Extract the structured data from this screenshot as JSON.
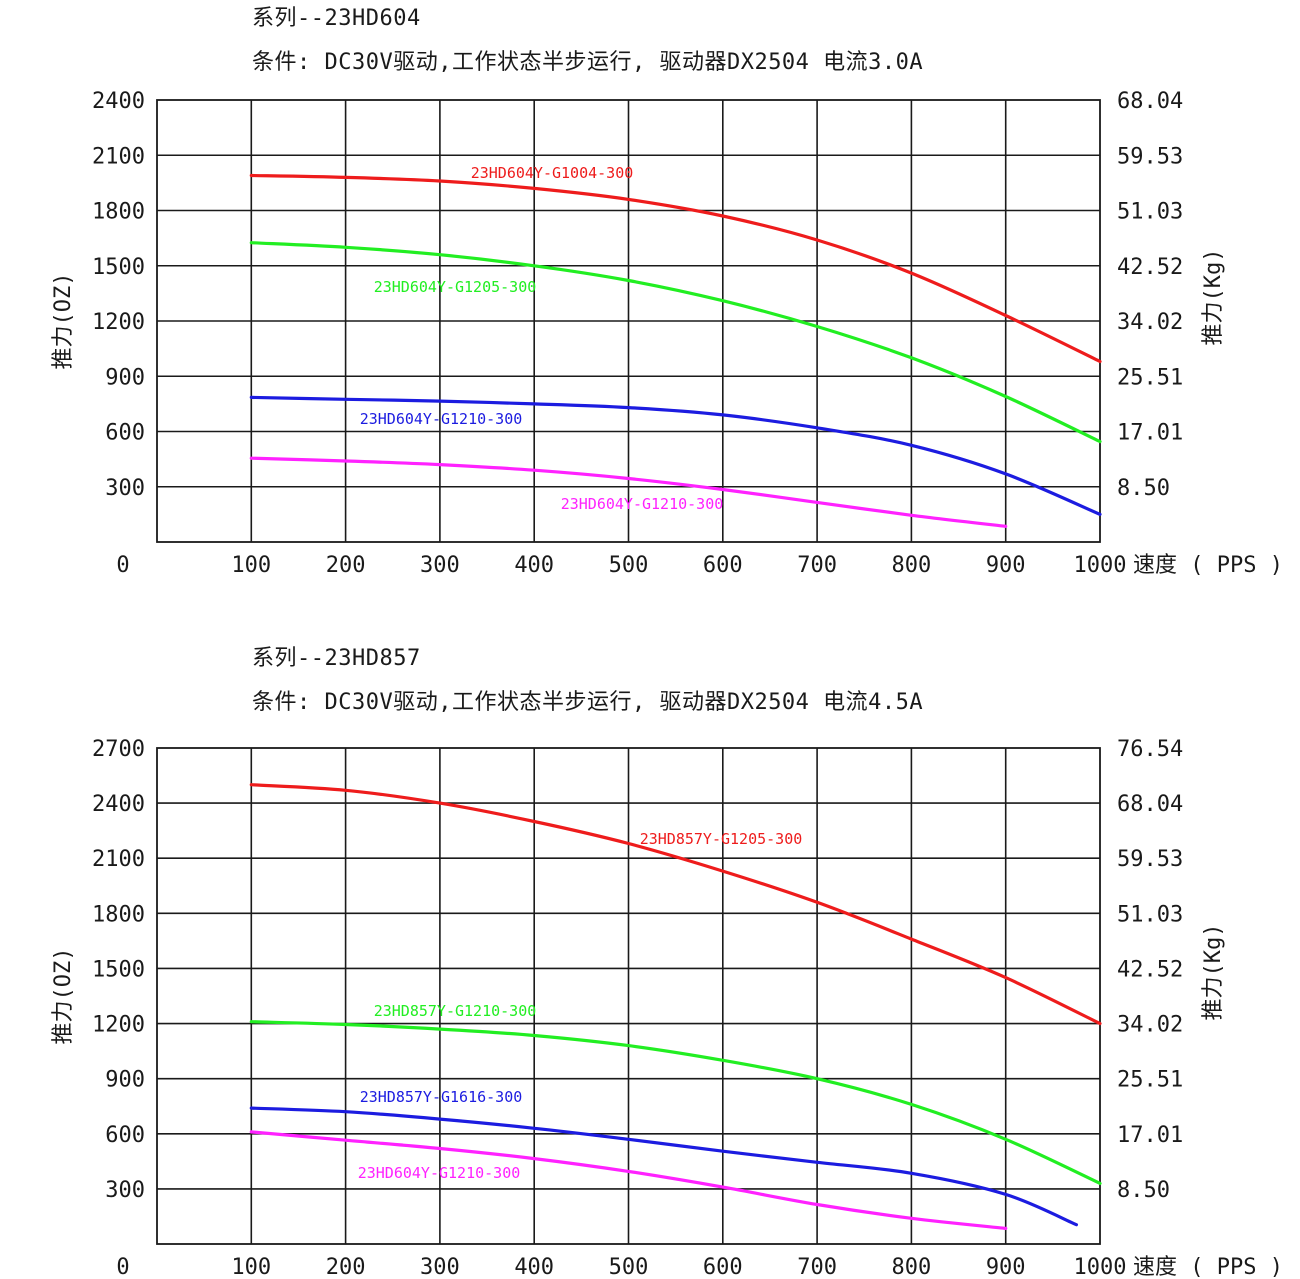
{
  "charts": [
    {
      "series_title": "系列--23HD604",
      "condition": "条件: DC30V驱动,工作状态半步运行, 驱动器DX2504 电流3.0A",
      "left_axis_label": "推力(OZ)",
      "right_axis_label": "推力(Kg)",
      "x_axis_label": "速度 ( PPS )",
      "x_origin_label": "0"
    },
    {
      "series_title": "系列--23HD857",
      "condition": "条件: DC30V驱动,工作状态半步运行, 驱动器DX2504 电流4.5A",
      "left_axis_label": "推力(OZ)",
      "right_axis_label": "推力(Kg)",
      "x_axis_label": "速度 ( PPS )",
      "x_origin_label": "0"
    }
  ],
  "chart_data": [
    {
      "type": "line",
      "title": "系列--23HD604",
      "subtitle": "条件: DC30V驱动,工作状态半步运行, 驱动器DX2504 电流3.0A",
      "xlabel": "速度 ( PPS )",
      "ylabel": "推力(OZ)",
      "y2label": "推力(Kg)",
      "xlim": [
        0,
        1000
      ],
      "ylim": [
        0,
        2400
      ],
      "x_ticks": [
        100,
        200,
        300,
        400,
        500,
        600,
        700,
        800,
        900,
        1000
      ],
      "y_ticks": [
        300,
        600,
        900,
        1200,
        1500,
        1800,
        2100,
        2400
      ],
      "y2_ticks": [
        "8.50",
        "17.01",
        "25.51",
        "34.02",
        "42.52",
        "51.03",
        "59.53",
        "68.04"
      ],
      "grid": true,
      "series": [
        {
          "name": "23HD604Y-G1004-300",
          "color": "#ee1c1c",
          "x": [
            100,
            200,
            300,
            400,
            500,
            600,
            700,
            800,
            900,
            1000
          ],
          "values": [
            1990,
            1980,
            1960,
            1920,
            1860,
            1770,
            1640,
            1460,
            1230,
            980
          ]
        },
        {
          "name": "23HD604Y-G1205-300",
          "color": "#22ee22",
          "x": [
            100,
            200,
            300,
            400,
            500,
            600,
            700,
            800,
            900,
            1000
          ],
          "values": [
            1625,
            1600,
            1560,
            1500,
            1420,
            1310,
            1170,
            1000,
            790,
            545
          ]
        },
        {
          "name": "23HD604Y-G1210-300",
          "color": "#1c1ce0",
          "x": [
            100,
            200,
            300,
            400,
            500,
            600,
            700,
            800,
            900,
            1000
          ],
          "values": [
            785,
            775,
            765,
            750,
            730,
            690,
            620,
            525,
            370,
            150
          ]
        },
        {
          "name": "23HD604Y-G1210-300",
          "color": "#ff22ff",
          "x": [
            100,
            200,
            300,
            400,
            500,
            600,
            700,
            800,
            900
          ],
          "values": [
            455,
            440,
            420,
            390,
            345,
            285,
            215,
            145,
            85
          ]
        }
      ]
    },
    {
      "type": "line",
      "title": "系列--23HD857",
      "subtitle": "条件: DC30V驱动,工作状态半步运行, 驱动器DX2504 电流4.5A",
      "xlabel": "速度 ( PPS )",
      "ylabel": "推力(OZ)",
      "y2label": "推力(Kg)",
      "xlim": [
        0,
        1000
      ],
      "ylim": [
        0,
        2700
      ],
      "x_ticks": [
        100,
        200,
        300,
        400,
        500,
        600,
        700,
        800,
        900,
        1000
      ],
      "y_ticks": [
        300,
        600,
        900,
        1200,
        1500,
        1800,
        2100,
        2400,
        2700
      ],
      "y2_ticks": [
        "8.50",
        "17.01",
        "25.51",
        "34.02",
        "42.52",
        "51.03",
        "59.53",
        "68.04",
        "76.54"
      ],
      "grid": true,
      "series": [
        {
          "name": "23HD857Y-G1205-300",
          "color": "#ee1c1c",
          "x": [
            100,
            200,
            300,
            400,
            500,
            600,
            700,
            800,
            900,
            1000
          ],
          "values": [
            2500,
            2470,
            2400,
            2300,
            2180,
            2030,
            1860,
            1660,
            1450,
            1200
          ]
        },
        {
          "name": "23HD857Y-G1210-300",
          "color": "#22ee22",
          "x": [
            100,
            200,
            300,
            400,
            500,
            600,
            700,
            800,
            900,
            1000
          ],
          "values": [
            1210,
            1195,
            1170,
            1135,
            1080,
            1000,
            900,
            760,
            570,
            330
          ]
        },
        {
          "name": "23HD857Y-G1616-300",
          "color": "#1c1ce0",
          "x": [
            100,
            200,
            300,
            400,
            500,
            600,
            700,
            800,
            900,
            975
          ],
          "values": [
            740,
            720,
            680,
            630,
            570,
            505,
            445,
            385,
            270,
            105
          ]
        },
        {
          "name": "23HD604Y-G1210-300",
          "color": "#ff22ff",
          "x": [
            100,
            200,
            300,
            400,
            500,
            600,
            700,
            800,
            900
          ],
          "values": [
            610,
            565,
            520,
            465,
            395,
            310,
            215,
            140,
            85
          ]
        }
      ]
    }
  ]
}
